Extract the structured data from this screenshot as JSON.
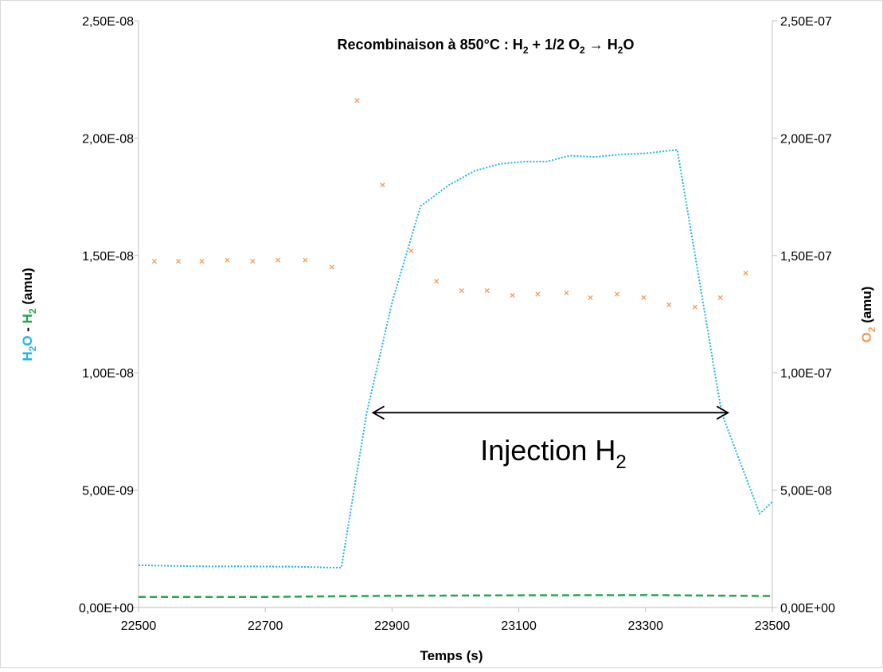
{
  "chart_data": {
    "type": "line",
    "title": {
      "prefix": "Recombinaison à 850°C : H",
      "sub1": "2",
      "part2": " + 1/2 O",
      "sub2": "2",
      "arrow": " → H",
      "sub3": "2",
      "suffix": "O"
    },
    "xlabel": "Temps (s)",
    "ylabel_left": {
      "h2o_a": "H",
      "h2o_sub": "2",
      "h2o_b": "O",
      "sep": " - ",
      "h2_a": "H",
      "h2_sub": "2",
      "unit": " (amu)"
    },
    "ylabel_right": {
      "o2_a": "O",
      "o2_sub": "2",
      "unit": " (amu)"
    },
    "xlim": [
      22500,
      23500
    ],
    "ylim_left": [
      0,
      2.5e-08
    ],
    "ylim_right": [
      0,
      2.5e-07
    ],
    "x_ticks": [
      22500,
      22700,
      22900,
      23100,
      23300,
      23500
    ],
    "x_tick_labels": [
      "22500",
      "22700",
      "22900",
      "23100",
      "23300",
      "23500"
    ],
    "y_left_ticks": [
      0,
      5e-09,
      1e-08,
      1.5e-08,
      2e-08,
      2.5e-08
    ],
    "y_left_tick_labels": [
      "0,00E+00",
      "5,00E-09",
      "1,00E-08",
      "1,50E-08",
      "2,00E-08",
      "2,50E-08"
    ],
    "y_right_ticks": [
      0,
      5e-08,
      1e-07,
      1.5e-07,
      2e-07,
      2.5e-07
    ],
    "y_right_tick_labels": [
      "0,00E+00",
      "5,00E-08",
      "1,00E-07",
      "1,50E-07",
      "2,00E-07",
      "2,50E-07"
    ],
    "grid": false,
    "colors": {
      "h2o": "#1fb5e8",
      "h2": "#22a84a",
      "o2": "#f59a57",
      "axis": "#bfbfbf",
      "text": "#000000"
    },
    "series": [
      {
        "name": "H2O",
        "axis": "left",
        "style": "dotted",
        "x": [
          22500,
          22560,
          22620,
          22680,
          22740,
          22780,
          22800,
          22820,
          22860,
          22900,
          22945,
          22990,
          23030,
          23070,
          23110,
          23145,
          23180,
          23220,
          23260,
          23300,
          23350,
          23420,
          23445,
          23480,
          23500
        ],
        "y": [
          1.8e-09,
          1.77e-09,
          1.75e-09,
          1.75e-09,
          1.74e-09,
          1.72e-09,
          1.7e-09,
          1.7e-09,
          8.3e-09,
          1.3e-08,
          1.71e-08,
          1.8e-08,
          1.86e-08,
          1.89e-08,
          1.9e-08,
          1.9e-08,
          1.925e-08,
          1.92e-08,
          1.93e-08,
          1.935e-08,
          1.95e-08,
          8.3e-09,
          6.5e-09,
          4e-09,
          4.5e-09
        ]
      },
      {
        "name": "H2",
        "axis": "left",
        "style": "dashed",
        "x": [
          22500,
          22700,
          22900,
          23100,
          23300,
          23500
        ],
        "y": [
          4.5e-10,
          4.5e-10,
          5e-10,
          5.2e-10,
          5.3e-10,
          4.9e-10
        ]
      },
      {
        "name": "O2",
        "axis": "right",
        "style": "markers",
        "x": [
          22525,
          22563,
          22600,
          22640,
          22680,
          22720,
          22763,
          22805,
          22845,
          22885,
          22930,
          22970,
          23010,
          23050,
          23090,
          23130,
          23175,
          23213,
          23255,
          23297,
          23337,
          23378,
          23418,
          23458
        ],
        "y": [
          1.475e-07,
          1.475e-07,
          1.475e-07,
          1.48e-07,
          1.475e-07,
          1.48e-07,
          1.48e-07,
          1.45e-07,
          2.16e-07,
          1.8e-07,
          1.52e-07,
          1.39e-07,
          1.35e-07,
          1.35e-07,
          1.33e-07,
          1.335e-07,
          1.34e-07,
          1.32e-07,
          1.335e-07,
          1.32e-07,
          1.29e-07,
          1.28e-07,
          1.32e-07,
          1.425e-07
        ]
      }
    ],
    "annotation": {
      "text": "Injection H",
      "sub": "2",
      "x_start": 22870,
      "x_end": 23430,
      "y": 8.3e-09
    }
  }
}
